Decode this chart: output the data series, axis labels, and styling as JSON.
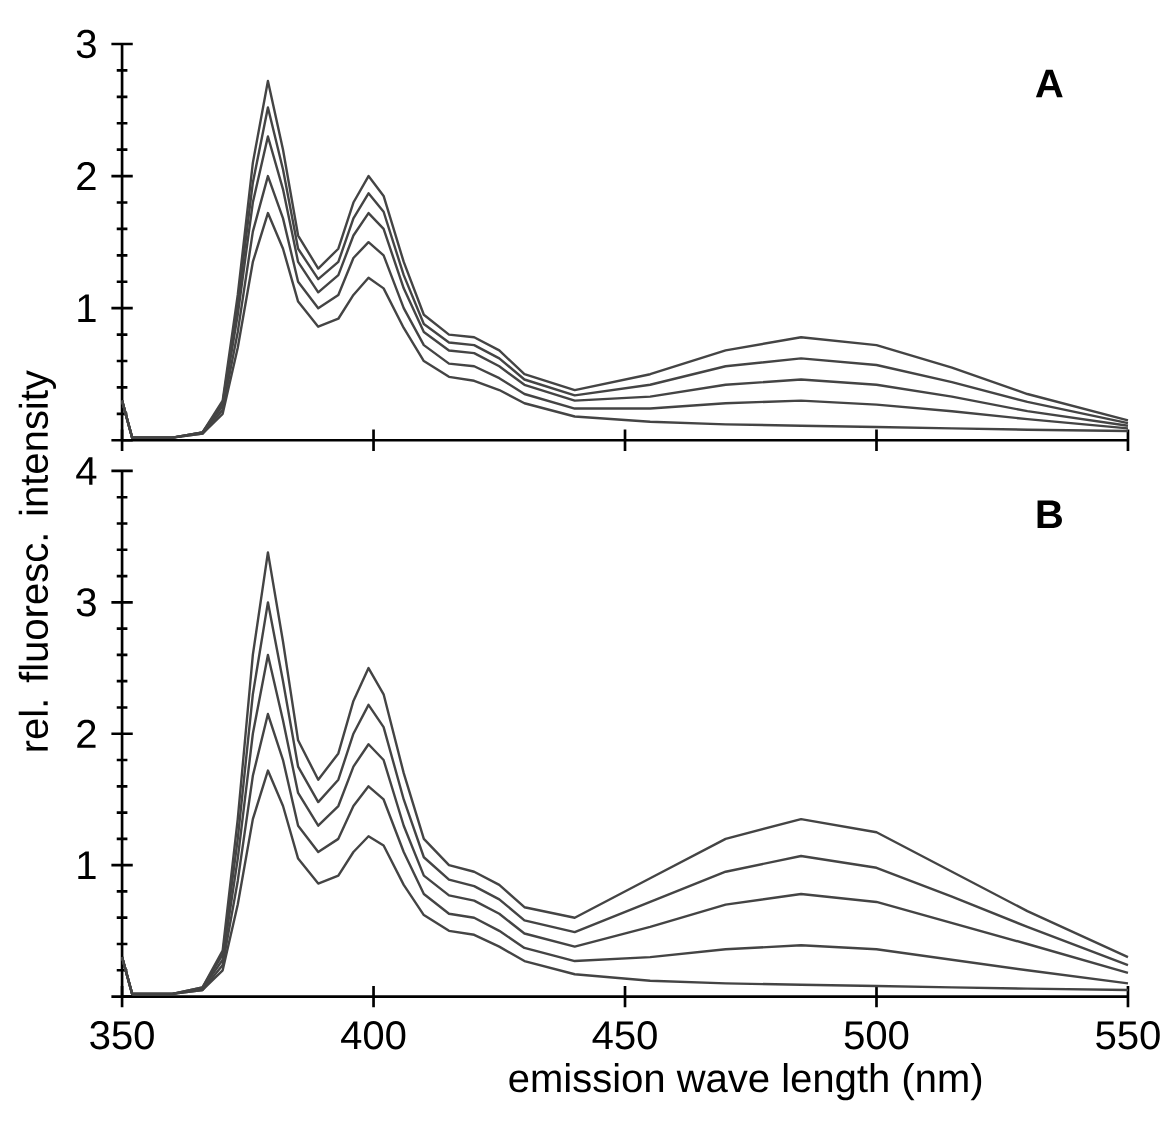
{
  "chart_data": [
    {
      "type": "line",
      "ylabel": "rel. fluoresc. intensity",
      "annotations": [
        "A"
      ],
      "tick_labels": "y",
      "marker": "none",
      "line_style": "solid",
      "x": [
        350,
        352,
        360,
        366,
        370,
        373,
        376,
        379,
        382,
        385,
        389,
        393,
        396,
        399,
        402,
        406,
        410,
        415,
        420,
        425,
        430,
        440,
        455,
        470,
        485,
        500,
        515,
        530,
        550
      ],
      "xlim": [
        350,
        550
      ],
      "xticks": [
        350,
        400,
        450,
        500,
        550
      ],
      "ylim": [
        0,
        3
      ],
      "yticks": [
        {
          "value": 0,
          "label": null
        },
        1,
        2,
        3
      ],
      "series": [
        {
          "color": "#444444",
          "values": [
            0.3,
            0.02,
            0.02,
            0.05,
            0.2,
            0.7,
            1.35,
            1.72,
            1.45,
            1.05,
            0.86,
            0.92,
            1.1,
            1.23,
            1.15,
            0.85,
            0.6,
            0.48,
            0.45,
            0.38,
            0.28,
            0.18,
            0.14,
            0.12,
            0.11,
            0.1,
            0.09,
            0.08,
            0.07
          ]
        },
        {
          "color": "#444444",
          "values": [
            0.3,
            0.02,
            0.02,
            0.05,
            0.23,
            0.82,
            1.58,
            2.0,
            1.68,
            1.2,
            1.0,
            1.1,
            1.38,
            1.5,
            1.4,
            1.0,
            0.72,
            0.58,
            0.56,
            0.47,
            0.35,
            0.24,
            0.24,
            0.28,
            0.3,
            0.27,
            0.22,
            0.16,
            0.09
          ]
        },
        {
          "color": "#444444",
          "values": [
            0.3,
            0.02,
            0.02,
            0.06,
            0.26,
            0.95,
            1.8,
            2.3,
            1.9,
            1.35,
            1.12,
            1.25,
            1.55,
            1.72,
            1.6,
            1.15,
            0.82,
            0.68,
            0.66,
            0.56,
            0.42,
            0.3,
            0.33,
            0.42,
            0.46,
            0.42,
            0.33,
            0.22,
            0.11
          ]
        },
        {
          "color": "#444444",
          "values": [
            0.3,
            0.02,
            0.02,
            0.06,
            0.28,
            1.03,
            1.95,
            2.52,
            2.05,
            1.45,
            1.22,
            1.35,
            1.68,
            1.87,
            1.73,
            1.25,
            0.88,
            0.74,
            0.72,
            0.62,
            0.46,
            0.34,
            0.42,
            0.56,
            0.62,
            0.57,
            0.44,
            0.29,
            0.13
          ]
        },
        {
          "color": "#444444",
          "values": [
            0.3,
            0.02,
            0.02,
            0.06,
            0.3,
            1.1,
            2.1,
            2.72,
            2.2,
            1.55,
            1.3,
            1.45,
            1.8,
            2.0,
            1.85,
            1.35,
            0.95,
            0.8,
            0.78,
            0.68,
            0.5,
            0.38,
            0.5,
            0.68,
            0.78,
            0.72,
            0.55,
            0.35,
            0.15
          ]
        }
      ]
    },
    {
      "type": "line",
      "xlabel": "emission  wave length (nm)",
      "annotations": [
        "B"
      ],
      "marker": "none",
      "line_style": "solid",
      "x": [
        350,
        352,
        360,
        366,
        370,
        373,
        376,
        379,
        382,
        385,
        389,
        393,
        396,
        399,
        402,
        406,
        410,
        415,
        420,
        425,
        430,
        440,
        455,
        470,
        485,
        500,
        515,
        530,
        550
      ],
      "xlim": [
        350,
        550
      ],
      "xticks": [
        350,
        400,
        450,
        500,
        550
      ],
      "ylim": [
        0,
        4
      ],
      "yticks": [
        {
          "value": 0,
          "label": null
        },
        1,
        2,
        3,
        4
      ],
      "series": [
        {
          "color": "#444444",
          "values": [
            0.3,
            0.02,
            0.02,
            0.05,
            0.2,
            0.7,
            1.35,
            1.72,
            1.45,
            1.05,
            0.86,
            0.92,
            1.1,
            1.22,
            1.15,
            0.85,
            0.62,
            0.5,
            0.47,
            0.38,
            0.27,
            0.17,
            0.12,
            0.1,
            0.09,
            0.08,
            0.07,
            0.06,
            0.05
          ]
        },
        {
          "color": "#444444",
          "values": [
            0.3,
            0.02,
            0.02,
            0.05,
            0.24,
            0.88,
            1.68,
            2.15,
            1.8,
            1.3,
            1.1,
            1.2,
            1.45,
            1.6,
            1.5,
            1.1,
            0.78,
            0.63,
            0.6,
            0.5,
            0.37,
            0.27,
            0.3,
            0.36,
            0.39,
            0.36,
            0.28,
            0.2,
            0.1
          ]
        },
        {
          "color": "#444444",
          "values": [
            0.3,
            0.02,
            0.02,
            0.06,
            0.28,
            1.05,
            2.0,
            2.6,
            2.1,
            1.55,
            1.3,
            1.45,
            1.75,
            1.92,
            1.8,
            1.3,
            0.92,
            0.77,
            0.73,
            0.63,
            0.48,
            0.38,
            0.53,
            0.7,
            0.78,
            0.72,
            0.56,
            0.4,
            0.18
          ]
        },
        {
          "color": "#444444",
          "values": [
            0.3,
            0.02,
            0.02,
            0.07,
            0.32,
            1.2,
            2.3,
            3.0,
            2.4,
            1.75,
            1.48,
            1.65,
            2.0,
            2.22,
            2.05,
            1.5,
            1.06,
            0.89,
            0.84,
            0.74,
            0.58,
            0.49,
            0.72,
            0.95,
            1.07,
            0.98,
            0.76,
            0.53,
            0.24
          ]
        },
        {
          "color": "#444444",
          "values": [
            0.3,
            0.02,
            0.02,
            0.07,
            0.35,
            1.35,
            2.6,
            3.38,
            2.7,
            1.95,
            1.65,
            1.85,
            2.25,
            2.5,
            2.3,
            1.7,
            1.2,
            1.0,
            0.95,
            0.85,
            0.68,
            0.6,
            0.9,
            1.2,
            1.35,
            1.25,
            0.95,
            0.65,
            0.3
          ]
        }
      ]
    }
  ]
}
